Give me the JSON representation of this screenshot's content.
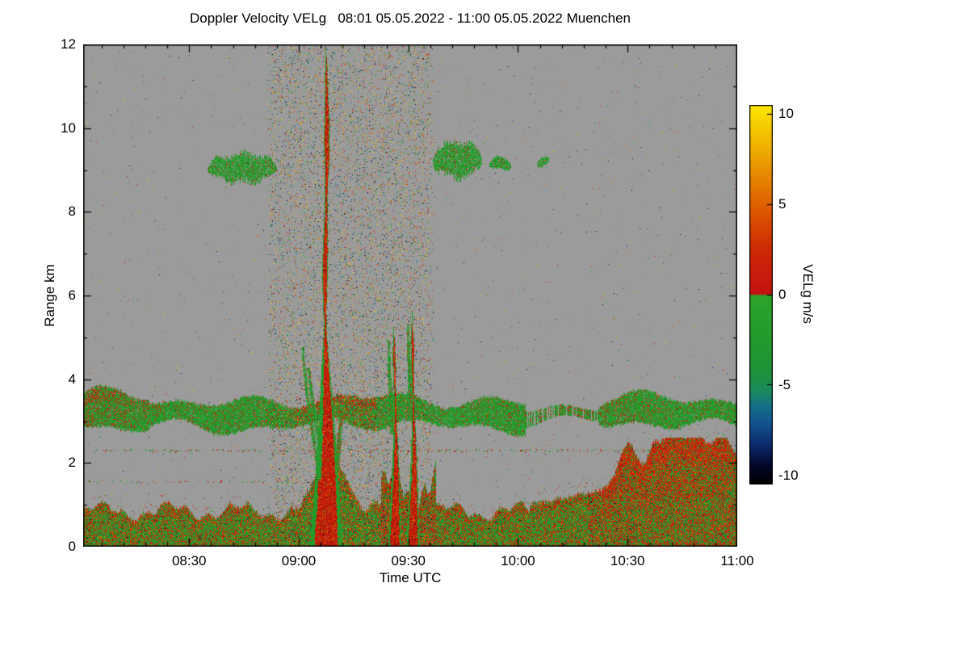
{
  "chart_data": {
    "type": "heatmap",
    "title": "Doppler Velocity VELg   08:01 05.05.2022 - 11:00 05.05.2022 Muenchen",
    "xlabel": "Time UTC",
    "ylabel": "Range km",
    "x_start": "08:01",
    "x_end": "11:00",
    "x_ticks": [
      "08:30",
      "09:00",
      "09:30",
      "10:00",
      "10:30",
      "11:00"
    ],
    "x_minor_step_min": 6,
    "y_ticks": [
      0,
      2,
      4,
      6,
      8,
      10,
      12
    ],
    "y_minor_ticks": [
      1,
      3,
      5,
      7,
      9,
      11
    ],
    "ylim": [
      0,
      12
    ],
    "grid": false,
    "no_data_color": "#9b9b9b",
    "colorbar": {
      "label": "VELg m/s",
      "ticks": [
        10,
        5,
        0,
        -5,
        -10
      ],
      "vmin": -10.5,
      "vmax": 10.5
    },
    "colormap_stops": [
      [
        -10.5,
        "#000000"
      ],
      [
        -9.4,
        "#05082e"
      ],
      [
        -8.3,
        "#0d2d6e"
      ],
      [
        -7.2,
        "#12508f"
      ],
      [
        -6.2,
        "#156f89"
      ],
      [
        -5.4,
        "#1a8a60"
      ],
      [
        -4.2,
        "#1f9338"
      ],
      [
        -2.0,
        "#259c2b"
      ],
      [
        -0.05,
        "#2da52d"
      ],
      [
        0.05,
        "#c41212"
      ],
      [
        2.5,
        "#cf2a06"
      ],
      [
        4.5,
        "#dd5400"
      ],
      [
        6.5,
        "#e68600"
      ],
      [
        8.3,
        "#f0b400"
      ],
      [
        10.5,
        "#fce800"
      ]
    ],
    "features": {
      "sparse_noise": {
        "density": 0.003
      },
      "dense_noise_band": {
        "t0_min": 50.2,
        "t1_min": 96.0,
        "density": 0.085
      },
      "cloud_band": {
        "center_km": 3.2,
        "half_km": 0.3,
        "thin_t": [
          121,
          141
        ],
        "red_fraction": 0.18
      },
      "dashed_lines": [
        {
          "km": 2.3,
          "t0": 0,
          "t1": 179,
          "density": 0.42
        },
        {
          "km": 1.55,
          "t0": 0,
          "t1": 62,
          "density": 0.18
        }
      ],
      "green_blobs": [
        {
          "t0": 34,
          "t1": 53,
          "km": 9.05,
          "half_km": 0.33
        },
        {
          "t0": 95.5,
          "t1": 109,
          "km": 9.25,
          "half_km": 0.42
        },
        {
          "t0": 111,
          "t1": 117,
          "km": 9.15,
          "half_km": 0.14
        },
        {
          "t0": 124,
          "t1": 127.5,
          "km": 9.2,
          "half_km": 0.1
        }
      ],
      "boundary_layer": {
        "base_top_km": 0.8,
        "rise_after_min": 122,
        "plumes": [
          {
            "t": 149,
            "amp": 1.0,
            "w": 3.5
          },
          {
            "t": 156,
            "amp": 0.7,
            "w": 2.5
          },
          {
            "t": 161.5,
            "amp": 1.15,
            "w": 4
          },
          {
            "t": 168,
            "amp": 0.85,
            "w": 3
          },
          {
            "t": 174.5,
            "amp": 0.8,
            "w": 3.5
          }
        ]
      },
      "precip_shafts": [
        {
          "t": 66.5,
          "top_km": 11.9,
          "main": true
        },
        {
          "t": 85.3,
          "top_km": 5.25
        },
        {
          "t": 90.3,
          "top_km": 5.62
        }
      ],
      "surge": {
        "t0": 81.5,
        "t1": 96.5,
        "top_km": 2.1
      },
      "fall_streaks": [
        {
          "t0": 60.2,
          "km0": 4.75,
          "t1": 64.6,
          "km1": 1.85
        },
        {
          "t0": 61.9,
          "km0": 4.25,
          "t1": 65.2,
          "km1": 2.3
        },
        {
          "t0": 70.8,
          "km0": 3.3,
          "t1": 68.3,
          "km1": 1.3,
          "wide": true
        },
        {
          "t0": 83.6,
          "km0": 4.9,
          "t1": 84.8,
          "km1": 2.7
        },
        {
          "t0": 89.0,
          "km0": 5.3,
          "t1": 89.9,
          "km1": 3.0
        }
      ]
    }
  }
}
